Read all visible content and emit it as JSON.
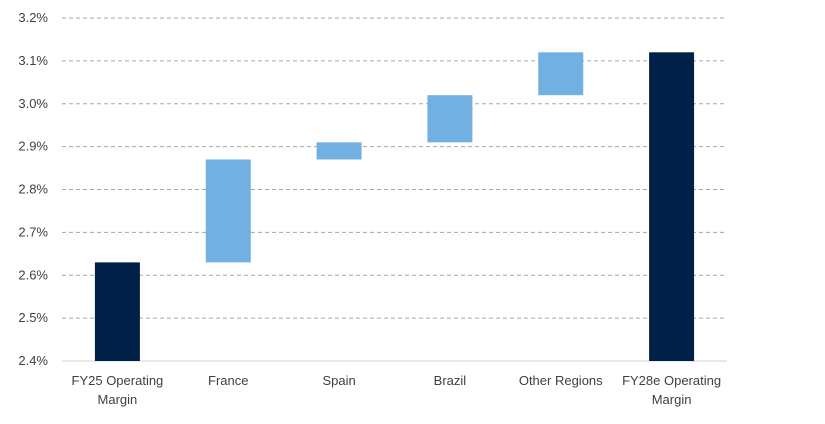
{
  "chart_data": {
    "type": "waterfall",
    "categories": [
      "FY25 Operating|Margin",
      "France",
      "Spain",
      "Brazil",
      "Other Regions",
      "FY28e Operating|Margin"
    ],
    "bars": [
      {
        "category": "FY25 Operating|Margin",
        "kind": "total",
        "start": 2.4,
        "end": 2.63
      },
      {
        "category": "France",
        "kind": "delta",
        "start": 2.63,
        "end": 2.87
      },
      {
        "category": "Spain",
        "kind": "delta",
        "start": 2.87,
        "end": 2.91
      },
      {
        "category": "Brazil",
        "kind": "delta",
        "start": 2.91,
        "end": 3.02
      },
      {
        "category": "Other Regions",
        "kind": "delta",
        "start": 3.02,
        "end": 3.12
      },
      {
        "category": "FY28e Operating|Margin",
        "kind": "total",
        "start": 2.4,
        "end": 3.12
      }
    ],
    "ylim": [
      2.4,
      3.2
    ],
    "yticks": [
      "2.4%",
      "2.5%",
      "2.6%",
      "2.7%",
      "2.8%",
      "2.9%",
      "3.0%",
      "3.1%",
      "3.2%"
    ],
    "grid": true,
    "colors": {
      "total": "#002147",
      "delta": "#73b0e2"
    }
  }
}
